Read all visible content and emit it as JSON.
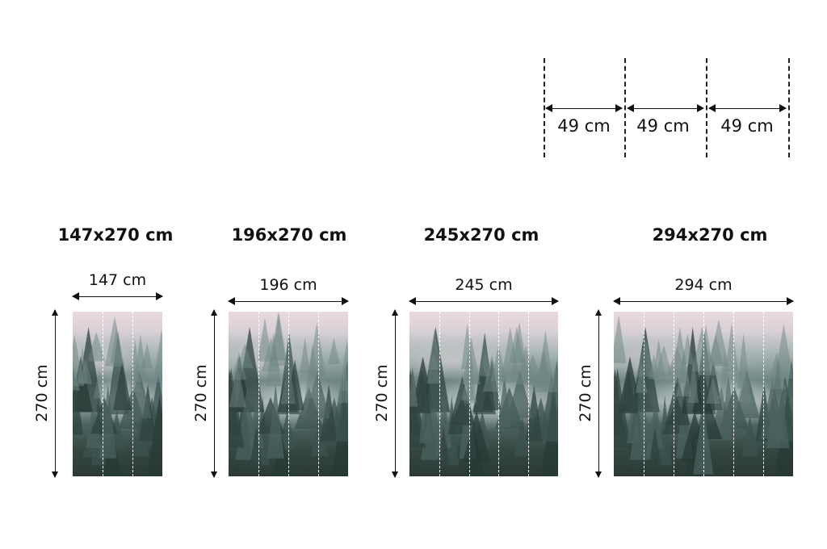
{
  "panel_width_guide": {
    "segments": [
      "49 cm",
      "49 cm",
      "49 cm"
    ]
  },
  "variants": [
    {
      "title": "147x270 cm",
      "width": "147 cm",
      "height": "270 cm",
      "panels": 3
    },
    {
      "title": "196x270 cm",
      "width": "196 cm",
      "height": "270 cm",
      "panels": 4
    },
    {
      "title": "245x270 cm",
      "width": "245 cm",
      "height": "270 cm",
      "panels": 5
    },
    {
      "title": "294x270 cm",
      "width": "294 cm",
      "height": "270 cm",
      "panels": 6
    }
  ]
}
